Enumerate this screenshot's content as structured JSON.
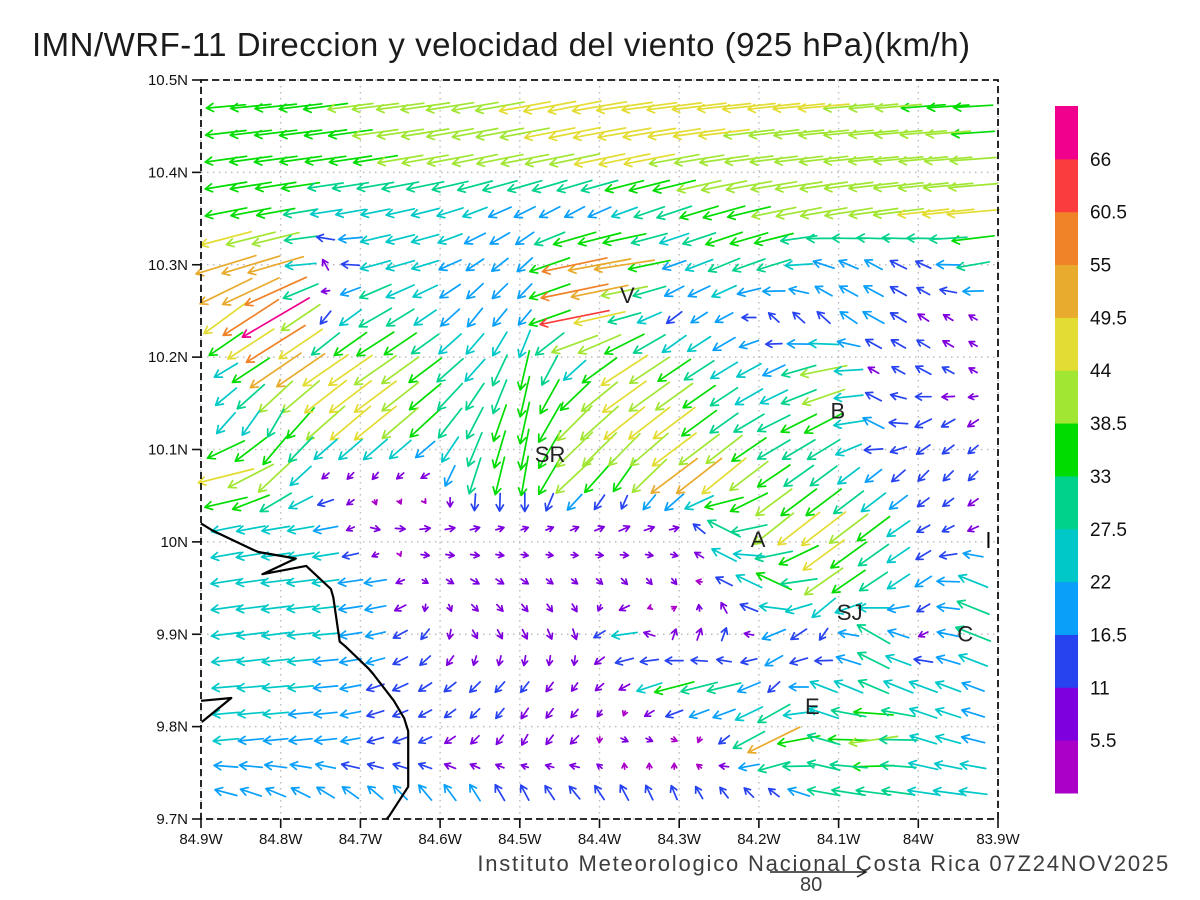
{
  "title": "IMN/WRF-11 Direccion y velocidad del viento (925 hPa)(km/h)",
  "footer": {
    "credit": "Instituto Meteorologico Nacional Costa Rica 07Z24NOV2025",
    "ref_label": "80"
  },
  "colorbar": {
    "labels_top_to_bottom": [
      "66",
      "60.5",
      "55",
      "49.5",
      "44",
      "38.5",
      "33",
      "27.5",
      "22",
      "16.5",
      "11",
      "5.5"
    ],
    "colors_bottom_to_top": [
      "#aa00c8",
      "#7f00de",
      "#2743f0",
      "#0aa0fa",
      "#00c8c8",
      "#00d28c",
      "#00dc00",
      "#a0e632",
      "#e3dc32",
      "#e8ab2d",
      "#f08228",
      "#fa3c3c",
      "#f0008c"
    ]
  },
  "chart_data": {
    "type": "quiver",
    "title": "IMN/WRF-11 Direccion y velocidad del viento (925 hPa)(km/h)",
    "units": "km/h",
    "level": "925 hPa",
    "lon_range": [
      -84.9,
      -83.9
    ],
    "lat_range": [
      9.7,
      10.5
    ],
    "lon_tick_labels": [
      "84.9W",
      "84.8W",
      "84.7W",
      "84.6W",
      "84.5W",
      "84.4W",
      "84.3W",
      "84.2W",
      "84.1W",
      "84W",
      "83.9W"
    ],
    "lat_tick_labels": [
      "10.5N",
      "10.4N",
      "10.3N",
      "10.2N",
      "10.1N",
      "10N",
      "9.9N",
      "9.8N",
      "9.7N"
    ],
    "grid_on": true,
    "legend_position": "right",
    "speed_levels_kmh": [
      5.5,
      11,
      16.5,
      22,
      27.5,
      33,
      38.5,
      44,
      49.5,
      55,
      60.5,
      66
    ],
    "speed_colors_bottom_to_top": [
      "#aa00c8",
      "#7f00de",
      "#2743f0",
      "#0aa0fa",
      "#00c8c8",
      "#00d28c",
      "#00dc00",
      "#a0e632",
      "#e3dc32",
      "#e8ab2d",
      "#f08228",
      "#fa3c3c",
      "#f0008c"
    ],
    "reference_arrow_kmh": 80,
    "cities": [
      {
        "label": "V",
        "lon": -84.365,
        "lat": 10.266
      },
      {
        "label": "B",
        "lon": -84.101,
        "lat": 10.141
      },
      {
        "label": "SR",
        "lon": -84.462,
        "lat": 10.094
      },
      {
        "label": "A",
        "lon": -84.201,
        "lat": 10.002
      },
      {
        "label": "SJ",
        "lon": -84.086,
        "lat": 9.923
      },
      {
        "label": "C",
        "lon": -83.941,
        "lat": 9.9
      },
      {
        "label": "E",
        "lon": -84.133,
        "lat": 9.821
      }
    ],
    "station_marker": {
      "lon": -83.912,
      "lat": 10.002
    },
    "coastline_lonlat": [
      [
        [
          -84.9,
          10.02
        ],
        [
          -84.885,
          10.012
        ],
        [
          -84.836,
          9.992
        ],
        [
          -84.828,
          9.989
        ],
        [
          -84.781,
          9.982
        ],
        [
          -84.823,
          9.965
        ],
        [
          -84.768,
          9.974
        ],
        [
          -84.737,
          9.949
        ],
        [
          -84.734,
          9.94
        ],
        [
          -84.726,
          9.892
        ],
        [
          -84.719,
          9.887
        ],
        [
          -84.69,
          9.863
        ],
        [
          -84.684,
          9.857
        ],
        [
          -84.658,
          9.828
        ],
        [
          -84.645,
          9.809
        ],
        [
          -84.64,
          9.795
        ],
        [
          -84.64,
          9.735
        ],
        [
          -84.664,
          9.703
        ],
        [
          -84.667,
          9.7
        ]
      ],
      [
        [
          -84.9,
          9.828
        ],
        [
          -84.862,
          9.831
        ],
        [
          -84.899,
          9.805
        ]
      ]
    ],
    "grid": {
      "cols": 16,
      "rows": 14,
      "note": "uv_kmh rows run north(10.47N) to south(9.73N); u east+, v north+",
      "uv_kmh": [
        [
          [
            -34,
            -3
          ],
          [
            -36,
            -4
          ],
          [
            -38,
            -5
          ],
          [
            -40,
            -5
          ],
          [
            -42,
            -6
          ],
          [
            -40,
            -7
          ],
          [
            -44,
            -8
          ],
          [
            -46,
            -9
          ],
          [
            -48,
            -7
          ],
          [
            -47,
            -6
          ],
          [
            -46,
            -5
          ],
          [
            -45,
            -5
          ],
          [
            -44,
            -4
          ],
          [
            -42,
            -4
          ],
          [
            -38,
            -3
          ],
          [
            -34,
            -2
          ]
        ],
        [
          [
            -36,
            -5
          ],
          [
            -37,
            -5
          ],
          [
            -35,
            -5
          ],
          [
            -38,
            -6
          ],
          [
            -40,
            -7
          ],
          [
            -39,
            -8
          ],
          [
            -41,
            -8
          ],
          [
            -43,
            -9
          ],
          [
            -44,
            -9
          ],
          [
            -43,
            -8
          ],
          [
            -42,
            -6
          ],
          [
            -41,
            -5
          ],
          [
            -42,
            -5
          ],
          [
            -43,
            -4
          ],
          [
            -42,
            -4
          ],
          [
            -40,
            -3
          ]
        ],
        [
          [
            -36,
            -7
          ],
          [
            -33,
            -6
          ],
          [
            -26,
            -4
          ],
          [
            -25,
            -5
          ],
          [
            -24,
            -6
          ],
          [
            -21,
            -8
          ],
          [
            -18,
            -9
          ],
          [
            -17,
            -9
          ],
          [
            -22,
            -8
          ],
          [
            -30,
            -10
          ],
          [
            -36,
            -10
          ],
          [
            -38,
            -8
          ],
          [
            -40,
            -7
          ],
          [
            -42,
            -6
          ],
          [
            -44,
            -5
          ],
          [
            -45,
            -4
          ]
        ],
        [
          [
            -52,
            -16
          ],
          [
            -48,
            -14
          ],
          [
            -5,
            9
          ],
          [
            -26,
            -7
          ],
          [
            -23,
            -7
          ],
          [
            -15,
            -10
          ],
          [
            -13,
            -12
          ],
          [
            -56,
            -12
          ],
          [
            -52,
            -8
          ],
          [
            -20,
            -7
          ],
          [
            -27,
            -11
          ],
          [
            -29,
            -9
          ],
          [
            -18,
            6
          ],
          [
            -15,
            8
          ],
          [
            -13,
            6
          ],
          [
            -28,
            -5
          ]
        ],
        [
          [
            -38,
            -28
          ],
          [
            -58,
            -34
          ],
          [
            -9,
            -11
          ],
          [
            -28,
            -16
          ],
          [
            -19,
            -13
          ],
          [
            -13,
            -16
          ],
          [
            -11,
            -13
          ],
          [
            -60,
            -12
          ],
          [
            -28,
            -8
          ],
          [
            -13,
            -10
          ],
          [
            -15,
            -8
          ],
          [
            -9,
            8
          ],
          [
            -11,
            10
          ],
          [
            -18,
            10
          ],
          [
            -9,
            6
          ],
          [
            -7,
            4
          ]
        ],
        [
          [
            -20,
            -12
          ],
          [
            -44,
            -30
          ],
          [
            -39,
            -27
          ],
          [
            -36,
            -25
          ],
          [
            -28,
            -21
          ],
          [
            -17,
            -19
          ],
          [
            -8,
            -34
          ],
          [
            -19,
            -17
          ],
          [
            -40,
            -26
          ],
          [
            -28,
            -19
          ],
          [
            -23,
            -14
          ],
          [
            -19,
            -9
          ],
          [
            -40,
            -8
          ],
          [
            -9,
            5
          ],
          [
            -13,
            7
          ],
          [
            -7,
            4
          ]
        ],
        [
          [
            -16,
            -18
          ],
          [
            -14,
            -24
          ],
          [
            -33,
            -29
          ],
          [
            -36,
            -29
          ],
          [
            -26,
            -24
          ],
          [
            -14,
            -27
          ],
          [
            -8,
            -36
          ],
          [
            -30,
            -30
          ],
          [
            -35,
            -28
          ],
          [
            -36,
            -27
          ],
          [
            -24,
            -17
          ],
          [
            -28,
            -14
          ],
          [
            -33,
            -17
          ],
          [
            -18,
            9
          ],
          [
            -14,
            -7
          ],
          [
            -9,
            -6
          ]
        ],
        [
          [
            -48,
            -12
          ],
          [
            -30,
            -28
          ],
          [
            -6,
            -5
          ],
          [
            -5,
            -6
          ],
          [
            -7,
            -4
          ],
          [
            -10,
            -31
          ],
          [
            -6,
            -34
          ],
          [
            -32,
            -30
          ],
          [
            -19,
            -27
          ],
          [
            -40,
            -30
          ],
          [
            -38,
            -31
          ],
          [
            -28,
            -19
          ],
          [
            -23,
            -17
          ],
          [
            -14,
            -11
          ],
          [
            -9,
            -9
          ],
          [
            -8,
            -8
          ]
        ],
        [
          [
            -25,
            -5
          ],
          [
            -24,
            -4
          ],
          [
            -21,
            -4
          ],
          [
            8,
            -2
          ],
          [
            9,
            1
          ],
          [
            8,
            2
          ],
          [
            6,
            2
          ],
          [
            7,
            3
          ],
          [
            9,
            4
          ],
          [
            8,
            2
          ],
          [
            -28,
            14
          ],
          [
            -34,
            -27
          ],
          [
            -38,
            -29
          ],
          [
            -28,
            -21
          ],
          [
            -11,
            -6
          ],
          [
            -9,
            -4
          ]
        ],
        [
          [
            -26,
            -4
          ],
          [
            -25,
            -3
          ],
          [
            -23,
            -3
          ],
          [
            -19,
            -3
          ],
          [
            5,
            -3
          ],
          [
            7,
            -4
          ],
          [
            6,
            -4
          ],
          [
            5,
            -4
          ],
          [
            5,
            -5
          ],
          [
            4,
            -5
          ],
          [
            -14,
            7
          ],
          [
            -30,
            14
          ],
          [
            -33,
            -23
          ],
          [
            -24,
            -16
          ],
          [
            -14,
            -9
          ],
          [
            -25,
            10
          ]
        ],
        [
          [
            -25,
            -3
          ],
          [
            -24,
            -3
          ],
          [
            -22,
            -2
          ],
          [
            -17,
            -4
          ],
          [
            -7,
            -9
          ],
          [
            4,
            -7
          ],
          [
            4,
            -8
          ],
          [
            3,
            -9
          ],
          [
            -22,
            -3
          ],
          [
            3,
            9
          ],
          [
            4,
            11
          ],
          [
            -20,
            -8
          ],
          [
            -7,
            -10
          ],
          [
            -28,
            16
          ],
          [
            -8,
            -4
          ],
          [
            -30,
            12
          ]
        ],
        [
          [
            -24,
            -2
          ],
          [
            -23,
            -2
          ],
          [
            -21,
            -2
          ],
          [
            -15,
            -5
          ],
          [
            -11,
            -7
          ],
          [
            -9,
            -9
          ],
          [
            -7,
            -9
          ],
          [
            -5,
            -7
          ],
          [
            -9,
            -5
          ],
          [
            -34,
            -9
          ],
          [
            -29,
            -7
          ],
          [
            -10,
            -9
          ],
          [
            -23,
            9
          ],
          [
            -26,
            11
          ],
          [
            -24,
            9
          ],
          [
            -19,
            7
          ]
        ],
        [
          [
            -22,
            -2
          ],
          [
            -21,
            -2
          ],
          [
            -19,
            -2
          ],
          [
            -14,
            -4
          ],
          [
            -11,
            -5
          ],
          [
            -7,
            -7
          ],
          [
            -5,
            -9
          ],
          [
            -7,
            -7
          ],
          [
            6,
            -3
          ],
          [
            5,
            -2
          ],
          [
            -9,
            -7
          ],
          [
            -45,
            -22
          ],
          [
            -28,
            8
          ],
          [
            -42,
            -6
          ],
          [
            -23,
            7
          ],
          [
            -20,
            5
          ]
        ],
        [
          [
            -19,
            5
          ],
          [
            -17,
            7
          ],
          [
            -15,
            9
          ],
          [
            -13,
            11
          ],
          [
            -11,
            13
          ],
          [
            -9,
            14
          ],
          [
            -7,
            13
          ],
          [
            -9,
            11
          ],
          [
            -7,
            13
          ],
          [
            -5,
            12
          ],
          [
            -7,
            9
          ],
          [
            -9,
            7
          ],
          [
            -28,
            5
          ],
          [
            -30,
            4
          ],
          [
            -27,
            4
          ],
          [
            -24,
            3
          ]
        ]
      ]
    }
  }
}
